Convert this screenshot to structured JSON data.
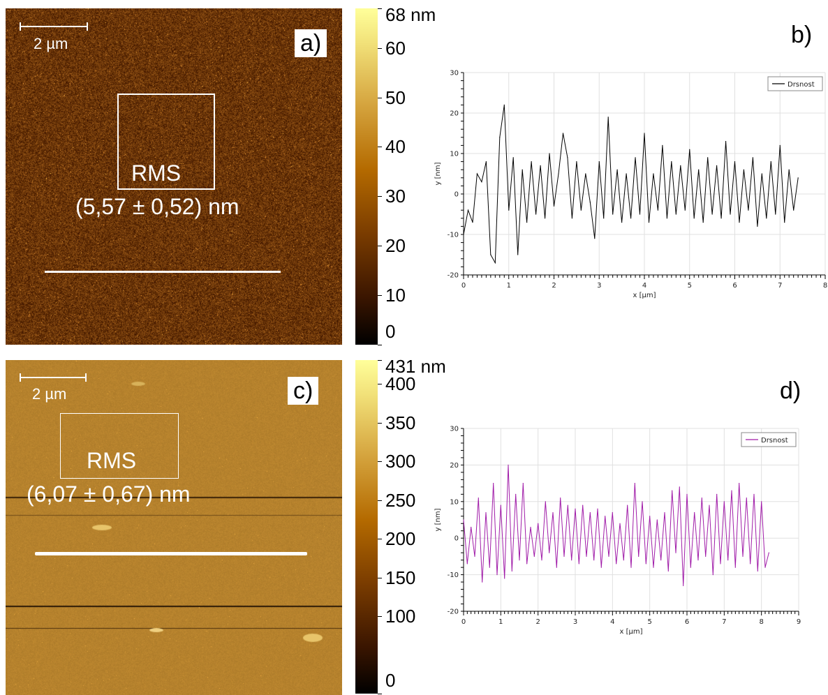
{
  "panels": {
    "a": {
      "tag": "a)",
      "scale_bar_label": "2 µm",
      "rms_label": "RMS",
      "rms_value": "(5,57 ± 0,52) nm",
      "colorbar_ticks": [
        "68 nm",
        "60",
        "50",
        "40",
        "30",
        "20",
        "10",
        "0"
      ],
      "colorbar_tick_values": [
        68,
        60,
        50,
        40,
        30,
        20,
        10,
        0
      ],
      "colorbar_range": [
        0,
        68
      ],
      "colormap": [
        "#000000",
        "#3a1500",
        "#7a3c00",
        "#b46a00",
        "#d6a640",
        "#f2e27a",
        "#ffff9a"
      ],
      "image_base_color": "#6a3508"
    },
    "b": {
      "tag": "b)"
    },
    "c": {
      "tag": "c)",
      "scale_bar_label": "2 µm",
      "rms_label": "RMS",
      "rms_value": "(6,07 ± 0,67) nm",
      "colorbar_ticks": [
        "431 nm",
        "400",
        "350",
        "300",
        "250",
        "200",
        "150",
        "100",
        "0"
      ],
      "colorbar_tick_values": [
        431,
        400,
        350,
        300,
        250,
        200,
        150,
        100,
        0
      ],
      "colorbar_range": [
        0,
        431
      ],
      "colormap": [
        "#000000",
        "#3a1500",
        "#7a3c00",
        "#b46a00",
        "#d6a640",
        "#f2e27a",
        "#ffff9a"
      ],
      "image_base_color": "#b6822d"
    },
    "d": {
      "tag": "d)"
    }
  },
  "chart_data": [
    {
      "type": "line",
      "panel": "b",
      "xlabel": "x [µm]",
      "ylabel": "y [nm]",
      "xlim": [
        0,
        8
      ],
      "ylim": [
        -20,
        30
      ],
      "xticks": [
        0,
        1,
        2,
        3,
        4,
        5,
        6,
        7,
        8
      ],
      "yticks": [
        -20,
        -10,
        0,
        10,
        20,
        30
      ],
      "grid": true,
      "legend": "top-right",
      "series": [
        {
          "name": "Drsnost",
          "color": "#000000",
          "x": [
            0,
            0.1,
            0.2,
            0.3,
            0.4,
            0.5,
            0.6,
            0.7,
            0.8,
            0.9,
            1.0,
            1.1,
            1.2,
            1.3,
            1.4,
            1.5,
            1.6,
            1.7,
            1.8,
            1.9,
            2.0,
            2.1,
            2.2,
            2.3,
            2.4,
            2.5,
            2.6,
            2.7,
            2.8,
            2.9,
            3.0,
            3.1,
            3.2,
            3.3,
            3.4,
            3.5,
            3.6,
            3.7,
            3.8,
            3.9,
            4.0,
            4.1,
            4.2,
            4.3,
            4.4,
            4.5,
            4.6,
            4.7,
            4.8,
            4.9,
            5.0,
            5.1,
            5.2,
            5.3,
            5.4,
            5.5,
            5.6,
            5.7,
            5.8,
            5.9,
            6.0,
            6.1,
            6.2,
            6.3,
            6.4,
            6.5,
            6.6,
            6.7,
            6.8,
            6.9,
            7.0,
            7.1,
            7.2,
            7.3,
            7.4
          ],
          "y": [
            -10,
            -4,
            -7,
            5,
            3,
            8,
            -15,
            -17,
            14,
            22,
            -4,
            9,
            -15,
            6,
            -7,
            8,
            -5,
            7,
            -6,
            10,
            -3,
            5,
            15,
            9,
            -6,
            8,
            -4,
            5,
            -2,
            -11,
            8,
            -6,
            19,
            -5,
            6,
            -7,
            5,
            -6,
            9,
            -5,
            15,
            -7,
            5,
            -4,
            12,
            -6,
            8,
            -5,
            7,
            -4,
            11,
            -6,
            6,
            -7,
            9,
            -5,
            7,
            -6,
            13,
            -5,
            8,
            -7,
            6,
            -4,
            9,
            -8,
            5,
            -6,
            8,
            -5,
            12,
            -7,
            6,
            -4,
            4
          ]
        }
      ]
    },
    {
      "type": "line",
      "panel": "d",
      "xlabel": "x [µm]",
      "ylabel": "y [nm]",
      "xlim": [
        0,
        9
      ],
      "ylim": [
        -20,
        30
      ],
      "xticks": [
        0,
        1,
        2,
        3,
        4,
        5,
        6,
        7,
        8,
        9
      ],
      "yticks": [
        -20,
        -10,
        0,
        10,
        20,
        30
      ],
      "grid": true,
      "legend": "top-right",
      "series": [
        {
          "name": "Drsnost",
          "color": "#a01ba8",
          "x": [
            0,
            0.1,
            0.2,
            0.3,
            0.4,
            0.5,
            0.6,
            0.7,
            0.8,
            0.9,
            1.0,
            1.1,
            1.2,
            1.3,
            1.4,
            1.5,
            1.6,
            1.7,
            1.8,
            1.9,
            2.0,
            2.1,
            2.2,
            2.3,
            2.4,
            2.5,
            2.6,
            2.7,
            2.8,
            2.9,
            3.0,
            3.1,
            3.2,
            3.3,
            3.4,
            3.5,
            3.6,
            3.7,
            3.8,
            3.9,
            4.0,
            4.1,
            4.2,
            4.3,
            4.4,
            4.5,
            4.6,
            4.7,
            4.8,
            4.9,
            5.0,
            5.1,
            5.2,
            5.3,
            5.4,
            5.5,
            5.6,
            5.7,
            5.8,
            5.9,
            6.0,
            6.1,
            6.2,
            6.3,
            6.4,
            6.5,
            6.6,
            6.7,
            6.8,
            6.9,
            7.0,
            7.1,
            7.2,
            7.3,
            7.4,
            7.5,
            7.6,
            7.7,
            7.8,
            7.9,
            8.0,
            8.1,
            8.2
          ],
          "y": [
            5,
            -7,
            3,
            -5,
            11,
            -12,
            7,
            -8,
            15,
            -10,
            9,
            -11,
            20,
            -9,
            12,
            -6,
            15,
            -7,
            3,
            -5,
            4,
            -6,
            10,
            -4,
            7,
            -8,
            11,
            -5,
            9,
            -6,
            8,
            -7,
            9,
            -5,
            7,
            -6,
            8,
            -8,
            6,
            -5,
            7,
            -7,
            4,
            -6,
            9,
            -8,
            15,
            -5,
            10,
            -7,
            6,
            -8,
            5,
            -6,
            7,
            -9,
            13,
            -4,
            14,
            -13,
            12,
            -8,
            7,
            -6,
            11,
            -5,
            9,
            -10,
            12,
            -7,
            10,
            -6,
            13,
            -8,
            15,
            -5,
            11,
            -7,
            12,
            -9,
            10,
            -8,
            -4
          ]
        }
      ]
    }
  ]
}
